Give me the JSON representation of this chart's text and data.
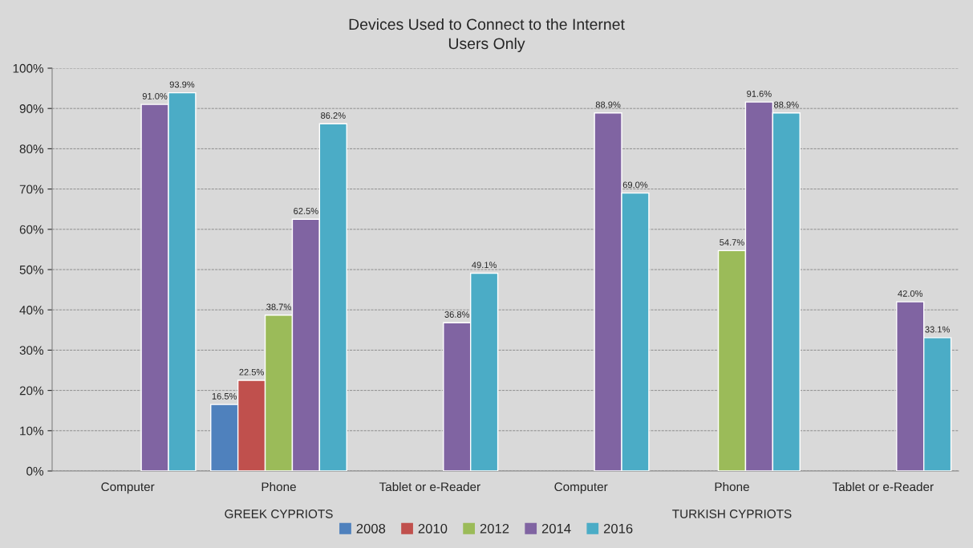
{
  "chart_data": {
    "type": "bar",
    "title": "Devices Used to Connect to the Internet",
    "subtitle": "Users Only",
    "categories": [
      "Computer",
      "Phone",
      "Tablet or e-Reader",
      "Computer",
      "Phone",
      "Tablet or e-Reader"
    ],
    "annotations": [
      "GREEK CYPRIOTS",
      "TURKISH CYPRIOTS"
    ],
    "series": [
      {
        "name": "2008",
        "color": "#4f81bd",
        "values": [
          null,
          16.5,
          null,
          null,
          null,
          null
        ],
        "value_labels": [
          null,
          "16.5%",
          null,
          null,
          null,
          null
        ]
      },
      {
        "name": "2010",
        "color": "#c0504d",
        "values": [
          null,
          22.5,
          null,
          null,
          null,
          null
        ],
        "value_labels": [
          null,
          "22.5%",
          null,
          null,
          null,
          null
        ]
      },
      {
        "name": "2012",
        "color": "#9bbb59",
        "values": [
          null,
          38.7,
          null,
          null,
          54.7,
          null
        ],
        "value_labels": [
          null,
          "38.7%",
          null,
          null,
          "54.7%",
          null
        ]
      },
      {
        "name": "2014",
        "color": "#8064a2",
        "values": [
          91.0,
          62.5,
          36.8,
          88.9,
          91.6,
          42.0
        ],
        "value_labels": [
          "91.0%",
          "62.5%",
          "36.8%",
          "88.9%",
          "91.6%",
          "42.0%"
        ]
      },
      {
        "name": "2016",
        "color": "#4bacc6",
        "values": [
          93.9,
          86.2,
          49.1,
          69.0,
          88.9,
          33.1
        ],
        "value_labels": [
          "93.9%",
          "86.2%",
          "49.1%",
          "69.0%",
          "88.9%",
          "33.1%"
        ]
      }
    ],
    "ylim": [
      0,
      100
    ],
    "yticks": [
      {
        "value": 0,
        "label": "0%"
      },
      {
        "value": 10,
        "label": "10%"
      },
      {
        "value": 20,
        "label": "20%"
      },
      {
        "value": 30,
        "label": "30%"
      },
      {
        "value": 40,
        "label": "40%"
      },
      {
        "value": 50,
        "label": "50%"
      },
      {
        "value": 60,
        "label": "60%"
      },
      {
        "value": 70,
        "label": "70%"
      },
      {
        "value": 80,
        "label": "80%"
      },
      {
        "value": 90,
        "label": "90%"
      },
      {
        "value": 100,
        "label": "100%"
      }
    ],
    "grid": "y",
    "legend": "bottom"
  }
}
